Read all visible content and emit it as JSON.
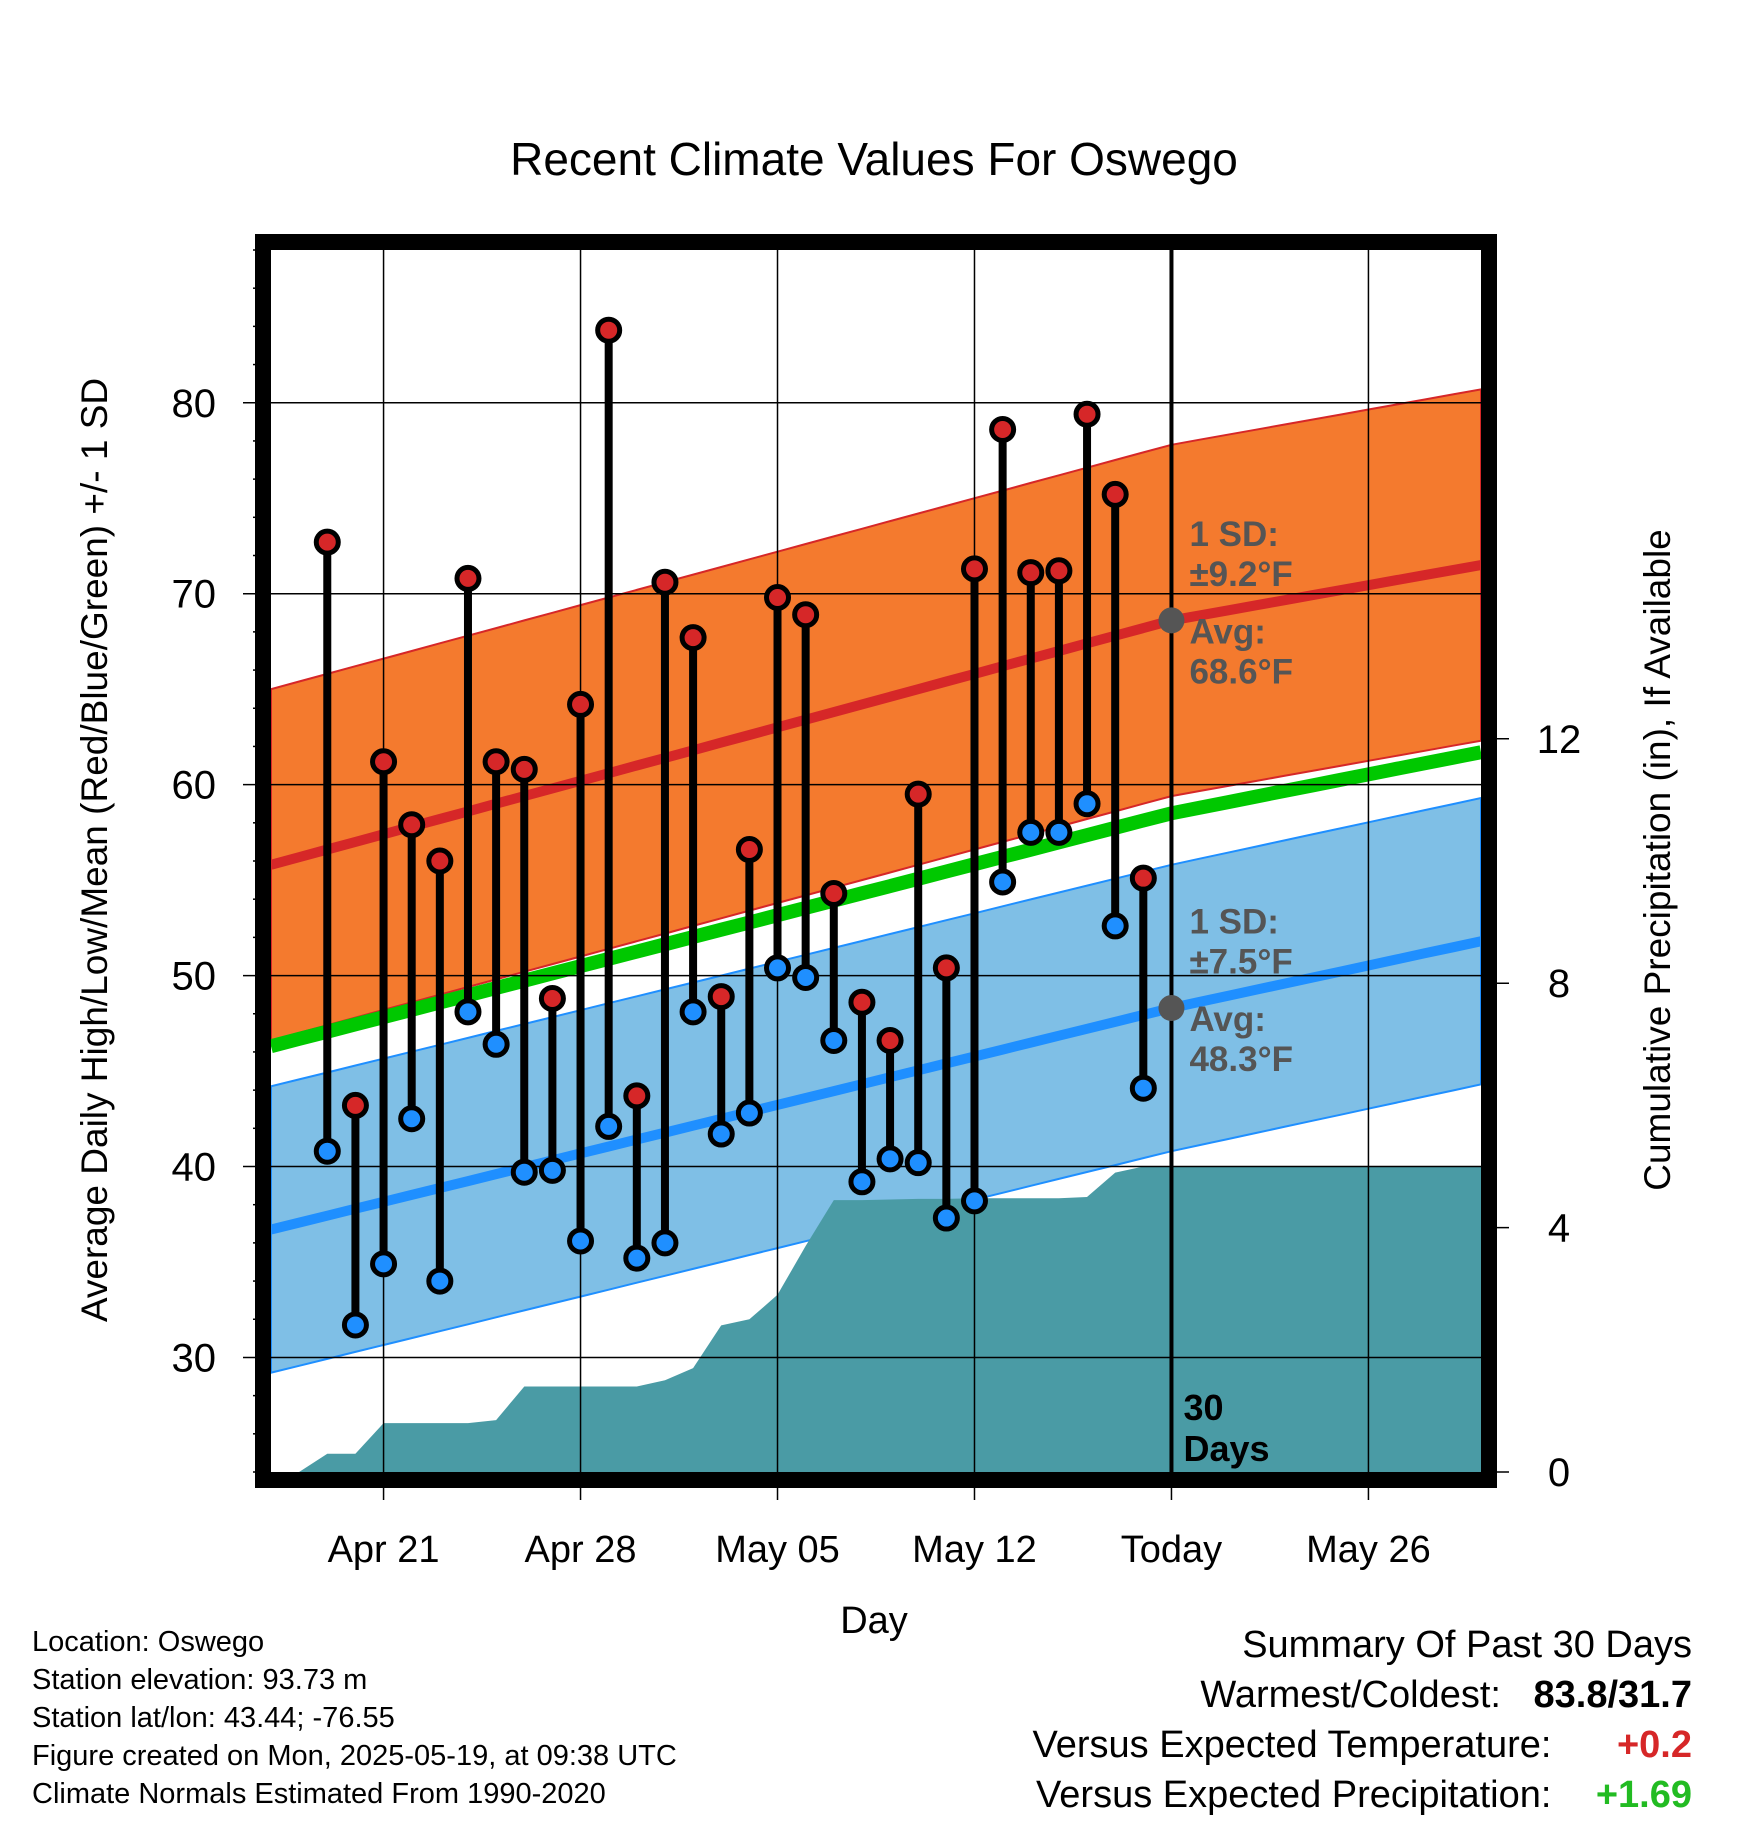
{
  "chart_data": {
    "type": "line",
    "title": "Recent Climate Values For Oswego",
    "xlabel": "Day",
    "ylabel": "Average Daily High/Low/Mean (Red/Blue/Green) +/- 1 SD",
    "y2label": "Cumulative Precipitation (in), If Available",
    "ylim": [
      24,
      88
    ],
    "y2lim": [
      0,
      20
    ],
    "yticks": [
      30,
      40,
      50,
      60,
      70,
      80
    ],
    "y2ticks": [
      0,
      4,
      8,
      12
    ],
    "xlim": [
      "2025-04-17",
      "2025-05-30"
    ],
    "xticks": [
      {
        "date": "2025-04-21",
        "label": "Apr 21"
      },
      {
        "date": "2025-04-28",
        "label": "Apr 28"
      },
      {
        "date": "2025-05-05",
        "label": "May 05"
      },
      {
        "date": "2025-05-12",
        "label": "May 12"
      },
      {
        "date": "2025-05-19",
        "label": "Today"
      },
      {
        "date": "2025-05-26",
        "label": "May 26"
      }
    ],
    "grid": true,
    "today": "2025-05-19",
    "window_label": [
      "30",
      "Days"
    ],
    "normals": {
      "dates": [
        "2025-04-17",
        "2025-05-19",
        "2025-05-30"
      ],
      "avg_high": [
        55.8,
        68.6,
        71.5
      ],
      "high_sd": 9.2,
      "avg_mean": [
        46.3,
        58.5,
        61.7
      ],
      "avg_low": [
        36.7,
        48.3,
        51.8
      ],
      "low_sd": 7.5
    },
    "normal_labels": {
      "high_sd": [
        "1 SD:",
        "±9.2°F"
      ],
      "high_avg": [
        "Avg:",
        "68.6°F"
      ],
      "low_sd": [
        "1 SD:",
        "±7.5°F"
      ],
      "low_avg": [
        "Avg:",
        "48.3°F"
      ]
    },
    "daily": {
      "dates": [
        "2025-04-19",
        "2025-04-20",
        "2025-04-21",
        "2025-04-22",
        "2025-04-23",
        "2025-04-24",
        "2025-04-25",
        "2025-04-26",
        "2025-04-27",
        "2025-04-28",
        "2025-04-29",
        "2025-04-30",
        "2025-05-01",
        "2025-05-02",
        "2025-05-03",
        "2025-05-04",
        "2025-05-05",
        "2025-05-06",
        "2025-05-07",
        "2025-05-08",
        "2025-05-09",
        "2025-05-10",
        "2025-05-11",
        "2025-05-12",
        "2025-05-13",
        "2025-05-14",
        "2025-05-15",
        "2025-05-16",
        "2025-05-17",
        "2025-05-18"
      ],
      "high": [
        72.7,
        43.2,
        61.2,
        57.9,
        56.0,
        70.8,
        61.2,
        60.8,
        48.8,
        64.2,
        83.8,
        43.7,
        70.6,
        67.7,
        48.9,
        56.6,
        69.8,
        68.9,
        54.3,
        48.6,
        46.6,
        59.5,
        50.4,
        71.3,
        78.6,
        71.1,
        71.2,
        79.4,
        75.2,
        55.1
      ],
      "low": [
        40.8,
        31.7,
        34.9,
        42.5,
        34.0,
        48.1,
        46.4,
        39.7,
        39.8,
        36.1,
        42.1,
        35.2,
        36.0,
        48.1,
        41.7,
        42.8,
        50.4,
        49.9,
        46.6,
        39.2,
        40.4,
        40.2,
        37.3,
        38.2,
        54.9,
        57.5,
        57.5,
        59.0,
        52.6,
        44.1
      ]
    },
    "precip_cumulative": {
      "dates": [
        "2025-04-17",
        "2025-04-18",
        "2025-04-19",
        "2025-04-20",
        "2025-04-21",
        "2025-04-22",
        "2025-04-23",
        "2025-04-24",
        "2025-04-25",
        "2025-04-26",
        "2025-04-27",
        "2025-04-28",
        "2025-04-29",
        "2025-04-30",
        "2025-05-01",
        "2025-05-02",
        "2025-05-03",
        "2025-05-04",
        "2025-05-05",
        "2025-05-06",
        "2025-05-07",
        "2025-05-08",
        "2025-05-09",
        "2025-05-10",
        "2025-05-11",
        "2025-05-12",
        "2025-05-13",
        "2025-05-14",
        "2025-05-15",
        "2025-05-16",
        "2025-05-17",
        "2025-05-18",
        "2025-05-19",
        "2025-05-30"
      ],
      "values": [
        0.0,
        0.0,
        0.3,
        0.3,
        0.8,
        0.8,
        0.8,
        0.8,
        0.85,
        1.4,
        1.4,
        1.4,
        1.4,
        1.4,
        1.5,
        1.7,
        2.4,
        2.5,
        2.9,
        3.7,
        4.45,
        4.45,
        4.46,
        4.47,
        4.47,
        4.48,
        4.48,
        4.48,
        4.48,
        4.5,
        4.9,
        5.0,
        5.0,
        5.0
      ]
    },
    "colors": {
      "high_band": "#f47a2e",
      "high_avg": "#d62728",
      "low_band": "#7fbfe6",
      "low_avg": "#1f8fff",
      "mean_line": "#00c800",
      "precip": "#4a9ba5",
      "high_marker": "#d62728",
      "low_marker": "#1f8fff",
      "annotation": "#555555"
    }
  },
  "info": {
    "location": "Location: Oswego",
    "elevation": "Station elevation: 93.73 m",
    "latlon": "Station lat/lon: 43.44; -76.55",
    "created": "Figure created on Mon, 2025-05-19, at 09:38 UTC",
    "normals": "Climate Normals Estimated From 1990-2020"
  },
  "summary": {
    "title": "Summary Of Past 30 Days",
    "warmest_coldest_label": "Warmest/Coldest:",
    "warmest_coldest_value": "83.8/31.7",
    "temp_label": "Versus Expected Temperature:",
    "temp_value": "+0.2",
    "temp_color": "#d62728",
    "precip_label": "Versus Expected Precipitation:",
    "precip_value": "+1.69",
    "precip_color": "#22bb22"
  }
}
